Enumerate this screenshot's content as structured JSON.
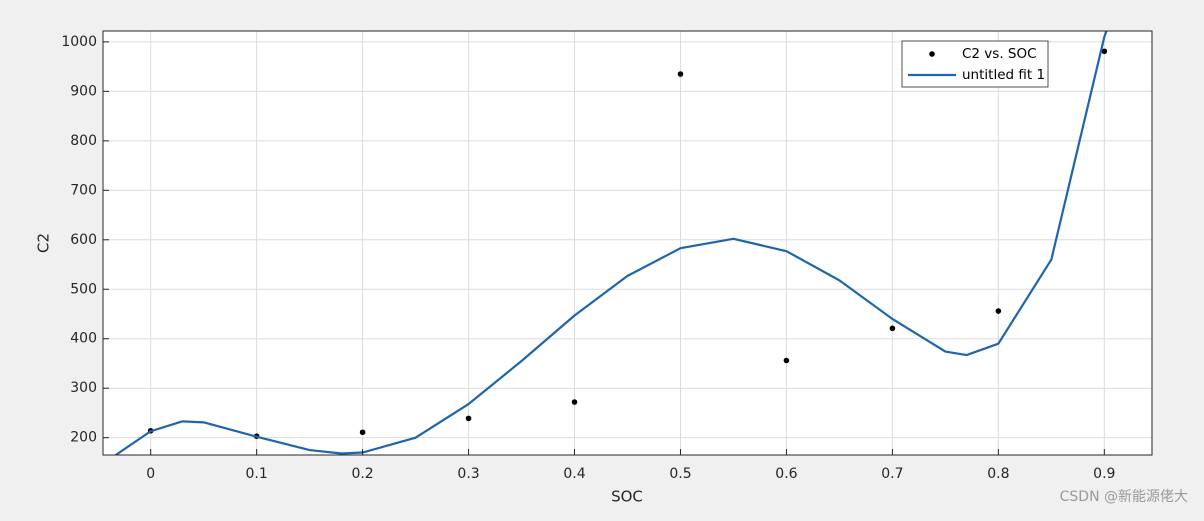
{
  "chart_data": {
    "type": "scatter",
    "xlabel": "SOC",
    "ylabel": "C2",
    "series": [
      {
        "name": "C2 vs. SOC",
        "color": "#000000",
        "style": "markers",
        "x": [
          0,
          0.1,
          0.2,
          0.3,
          0.4,
          0.5,
          0.6,
          0.7,
          0.8,
          0.9
        ],
        "values": [
          214,
          203,
          211,
          239,
          272,
          935,
          356,
          421,
          456,
          981
        ]
      },
      {
        "name": "untitled fit 1",
        "color": "#1f64ad",
        "style": "line",
        "x": [
          -0.033,
          0,
          0.03,
          0.05,
          0.1,
          0.15,
          0.18,
          0.2,
          0.25,
          0.3,
          0.35,
          0.4,
          0.45,
          0.5,
          0.55,
          0.6,
          0.65,
          0.7,
          0.75,
          0.77,
          0.8,
          0.85,
          0.9,
          0.902
        ],
        "values": [
          165,
          213,
          233,
          231,
          202,
          175,
          168,
          170,
          200,
          268,
          355,
          447,
          527,
          583,
          602,
          577,
          518,
          440,
          374,
          367,
          390,
          560,
          1010,
          1022
        ]
      }
    ],
    "xlim": [
      -0.045,
      0.945
    ],
    "ylim": [
      165,
      1022
    ],
    "xticks": [
      0,
      0.1,
      0.2,
      0.3,
      0.4,
      0.5,
      0.6,
      0.7,
      0.8,
      0.9
    ],
    "yticks": [
      200,
      300,
      400,
      500,
      600,
      700,
      800,
      900,
      1000
    ],
    "grid": true,
    "legend": "northeast",
    "watermark": "CSDN @新能源佬大"
  }
}
